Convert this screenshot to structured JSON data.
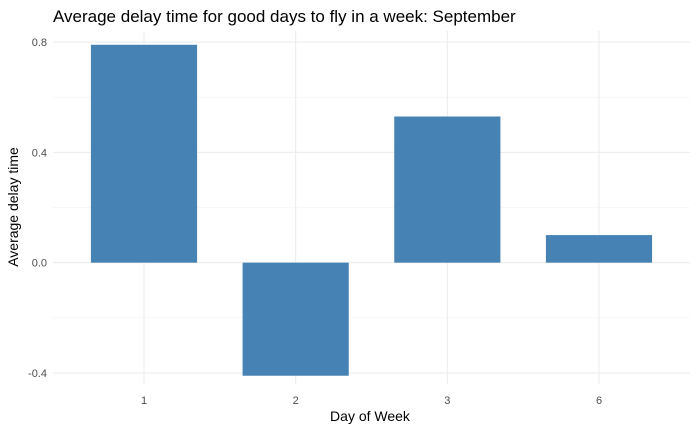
{
  "chart_data": {
    "type": "bar",
    "title": "Average delay time for good days to fly in a week: September",
    "xlabel": "Day of Week",
    "ylabel": "Average delay time",
    "categories": [
      "1",
      "2",
      "3",
      "6"
    ],
    "values": [
      0.79,
      -0.41,
      0.53,
      0.1
    ],
    "ylim": [
      -0.44,
      0.84
    ],
    "yticks": [
      -0.4,
      0.0,
      0.4,
      0.8
    ],
    "ytick_labels": [
      "-0.4",
      "0.0",
      "0.4",
      "0.8"
    ],
    "grid": true,
    "legend": "none",
    "bar_color": "#4682b4"
  }
}
